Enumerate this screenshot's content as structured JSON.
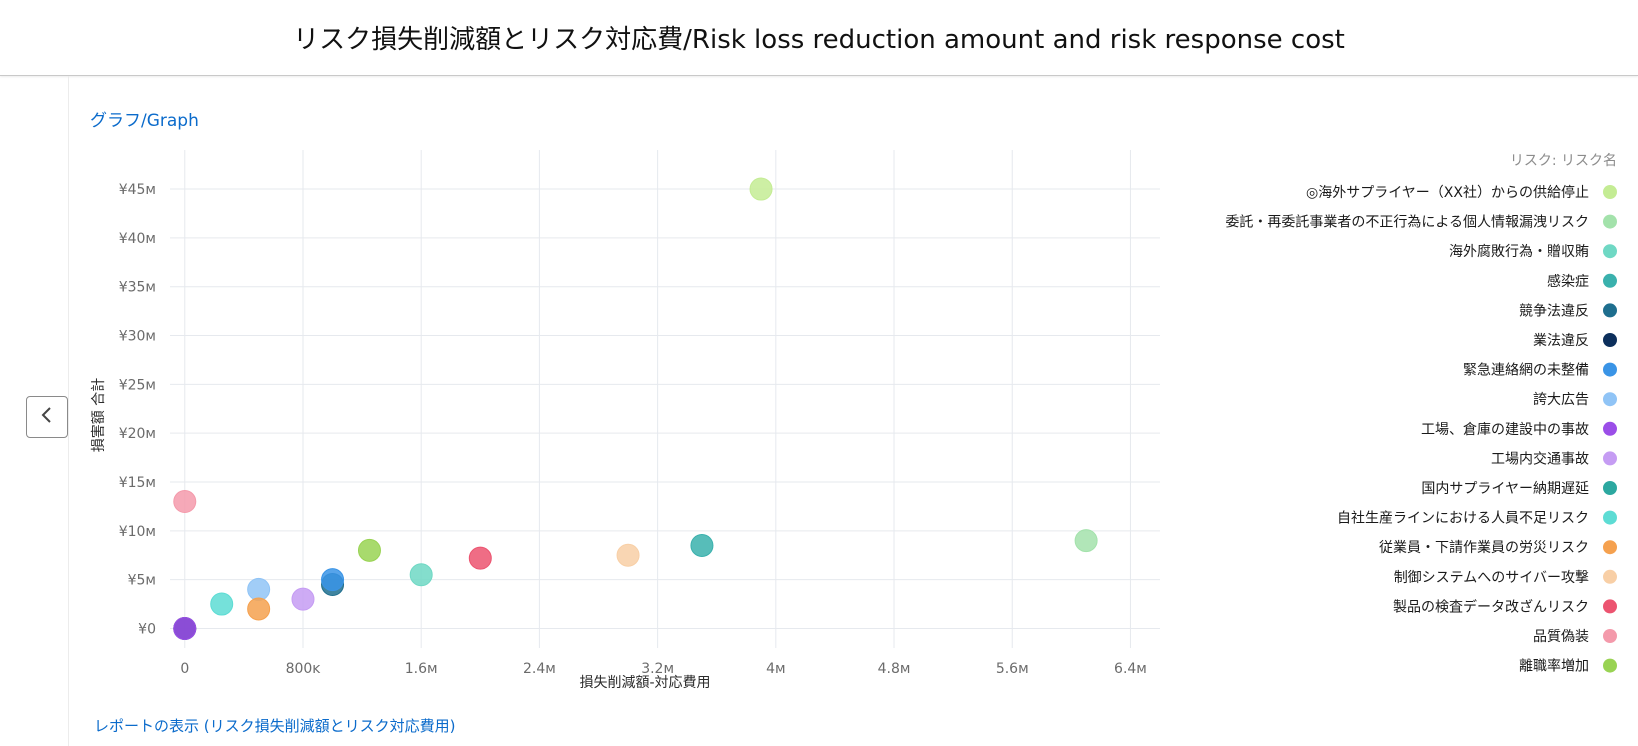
{
  "header": {
    "title": "リスク損失削減額とリスク対応費/Risk loss reduction amount and risk response cost"
  },
  "graph_link": "グラフ/Graph",
  "report_link": "レポートの表示 (リスク損失削減額とリスク対応費用)",
  "icons": {
    "collapse": "chevron-left-icon"
  },
  "chart_data": {
    "type": "scatter",
    "xlabel": "損失削減額-対応費用",
    "ylabel": "損害額 合計",
    "xlim": [
      -100000,
      6600000
    ],
    "ylim": [
      -2000000,
      49000000
    ],
    "x_ticks": [
      0,
      800000,
      1600000,
      2400000,
      3200000,
      4000000,
      4800000,
      5600000,
      6400000
    ],
    "x_tick_labels": [
      "0",
      "800ᴋ",
      "1.6ᴍ",
      "2.4ᴍ",
      "3.2ᴍ",
      "4ᴍ",
      "4.8ᴍ",
      "5.6ᴍ",
      "6.4ᴍ"
    ],
    "y_ticks": [
      0,
      5000000,
      10000000,
      15000000,
      20000000,
      25000000,
      30000000,
      35000000,
      40000000,
      45000000
    ],
    "y_tick_labels": [
      "¥0",
      "¥5ᴍ",
      "¥10ᴍ",
      "¥15ᴍ",
      "¥20ᴍ",
      "¥25ᴍ",
      "¥30ᴍ",
      "¥35ᴍ",
      "¥40ᴍ",
      "¥45ᴍ"
    ],
    "grid": true,
    "legend": {
      "title": "リスク: リスク名",
      "placement": "right"
    },
    "series": [
      {
        "name": "◎海外サプライヤー（XX社）からの供給停止",
        "color": "#c4ec94",
        "points": [
          [
            3900000,
            45000000
          ]
        ]
      },
      {
        "name": "委託・再委託事業者の不正行為による個人情報漏洩リスク",
        "color": "#a3e2ab",
        "points": [
          [
            6100000,
            9000000
          ]
        ]
      },
      {
        "name": "海外腐敗行為・贈収賄",
        "color": "#6fd8c4",
        "points": [
          [
            1600000,
            5500000
          ]
        ]
      },
      {
        "name": "感染症",
        "color": "#3ab1ad",
        "points": [
          [
            3500000,
            8500000
          ]
        ]
      },
      {
        "name": "競争法違反",
        "color": "#1e6e8e",
        "points": [
          [
            1000000,
            4500000
          ]
        ]
      },
      {
        "name": "業法違反",
        "color": "#0c2f5c",
        "points": [
          [
            0,
            0
          ]
        ]
      },
      {
        "name": "緊急連絡網の未整備",
        "color": "#3a94e6",
        "points": [
          [
            1000000,
            5000000
          ]
        ]
      },
      {
        "name": "誇大広告",
        "color": "#90c4f6",
        "points": [
          [
            500000,
            4000000
          ]
        ]
      },
      {
        "name": "工場、倉庫の建設中の事故",
        "color": "#9b4ee8",
        "points": [
          [
            0,
            0
          ]
        ]
      },
      {
        "name": "工場内交通事故",
        "color": "#c59cf3",
        "points": [
          [
            800000,
            3000000
          ]
        ]
      },
      {
        "name": "国内サプライヤー納期遅延",
        "color": "#2ca8a0",
        "points": []
      },
      {
        "name": "自社生産ラインにおける人員不足リスク",
        "color": "#5ddcd4",
        "points": [
          [
            250000,
            2500000
          ]
        ]
      },
      {
        "name": "従業員・下請作業員の労災リスク",
        "color": "#f5a14f",
        "points": [
          [
            500000,
            2000000
          ]
        ]
      },
      {
        "name": "制御システムへのサイバー攻撃",
        "color": "#f8cfa6",
        "points": [
          [
            3000000,
            7500000
          ]
        ]
      },
      {
        "name": "製品の検査データ改ざんリスク",
        "color": "#ec5470",
        "points": [
          [
            2000000,
            7200000
          ]
        ]
      },
      {
        "name": "品質偽装",
        "color": "#f49aab",
        "points": [
          [
            0,
            13000000
          ]
        ]
      },
      {
        "name": "離職率増加",
        "color": "#99d353",
        "points": [
          [
            1250000,
            8000000
          ]
        ]
      }
    ]
  }
}
